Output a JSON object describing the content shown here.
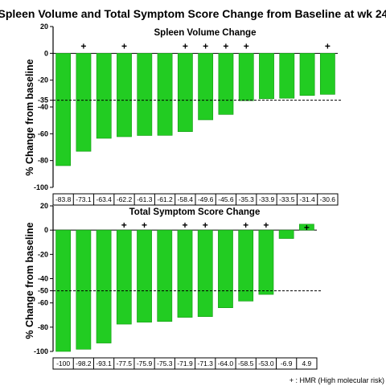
{
  "title": "Spleen Volume and Total Symptom Score Change from Baseline at wk 24",
  "legend_note": "+ : HMR (High molecular risk)",
  "colors": {
    "bar": "#22cc22",
    "bar_edge": "#119911",
    "axis": "#000000"
  },
  "chart_data": [
    {
      "type": "bar",
      "title": "Spleen Volume Change",
      "ylabel": "% Change from baseline",
      "ylim": [
        -100,
        20
      ],
      "yticks": [
        20,
        0,
        -20,
        -35,
        -40,
        -60,
        -80,
        -100
      ],
      "reference_line": -35,
      "values": [
        -83.8,
        -73.1,
        -63.4,
        -62.2,
        -61.3,
        -61.2,
        -58.4,
        -49.6,
        -45.6,
        -35.3,
        -33.9,
        -33.5,
        -31.4,
        -30.6
      ],
      "value_labels": [
        "-83.8",
        "-73.1",
        "-63.4",
        "-62.2",
        "-61.3",
        "-61.2",
        "-58.4",
        "-49.6",
        "-45.6",
        "-35.3",
        "-33.9",
        "-33.5",
        "-31.4",
        "-30.6"
      ],
      "hmr": [
        false,
        true,
        false,
        true,
        false,
        false,
        true,
        true,
        true,
        true,
        false,
        false,
        false,
        true
      ]
    },
    {
      "type": "bar",
      "title": "Total Symptom Score Change",
      "ylabel": "% Change from baseline",
      "ylim": [
        -100,
        20
      ],
      "yticks": [
        20,
        0,
        -20,
        -40,
        -50,
        -60,
        -80,
        -100
      ],
      "reference_line": -50,
      "values": [
        -100,
        -98.2,
        -93.1,
        -77.5,
        -75.9,
        -75.3,
        -71.9,
        -71.3,
        -64.0,
        -58.5,
        -53.0,
        -6.9,
        4.9
      ],
      "value_labels": [
        "-100",
        "-98.2",
        "-93.1",
        "-77.5",
        "-75.9",
        "-75.3",
        "-71.9",
        "-71.3",
        "-64.0",
        "-58.5",
        "-53.0",
        "-6.9",
        "4.9"
      ],
      "hmr": [
        false,
        false,
        false,
        true,
        true,
        false,
        true,
        true,
        false,
        true,
        true,
        false,
        true
      ]
    }
  ]
}
